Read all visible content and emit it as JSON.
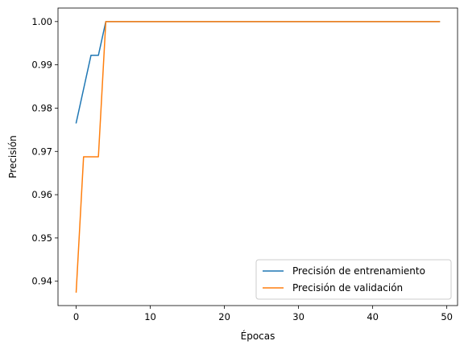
{
  "chart_data": {
    "type": "line",
    "xlabel": "Épocas",
    "ylabel": "Precisión",
    "xlim": [
      -2.45,
      51.45
    ],
    "ylim": [
      0.934375,
      1.003125
    ],
    "xticks": [
      0,
      10,
      20,
      30,
      40,
      50
    ],
    "yticks": [
      0.94,
      0.95,
      0.96,
      0.97,
      0.98,
      0.99,
      1.0
    ],
    "ytick_labels": [
      "0.94",
      "0.95",
      "0.96",
      "0.97",
      "0.98",
      "0.99",
      "1.00"
    ],
    "grid": false,
    "legend_position": "lower right",
    "series": [
      {
        "name": "Precisión de entrenamiento",
        "color": "#1f77b4",
        "x": [
          0,
          1,
          2,
          3,
          4,
          5,
          10,
          15,
          20,
          25,
          30,
          35,
          40,
          45,
          49
        ],
        "y": [
          0.9766,
          0.9844,
          0.9922,
          0.9922,
          1.0,
          1.0,
          1.0,
          1.0,
          1.0,
          1.0,
          1.0,
          1.0,
          1.0,
          1.0,
          1.0
        ]
      },
      {
        "name": "Precisión de validación",
        "color": "#ff7f0e",
        "x": [
          0,
          1,
          2,
          3,
          4,
          5,
          10,
          15,
          20,
          25,
          30,
          35,
          40,
          45,
          49
        ],
        "y": [
          0.9375,
          0.96875,
          0.96875,
          0.96875,
          1.0,
          1.0,
          1.0,
          1.0,
          1.0,
          1.0,
          1.0,
          1.0,
          1.0,
          1.0,
          1.0
        ]
      }
    ]
  }
}
